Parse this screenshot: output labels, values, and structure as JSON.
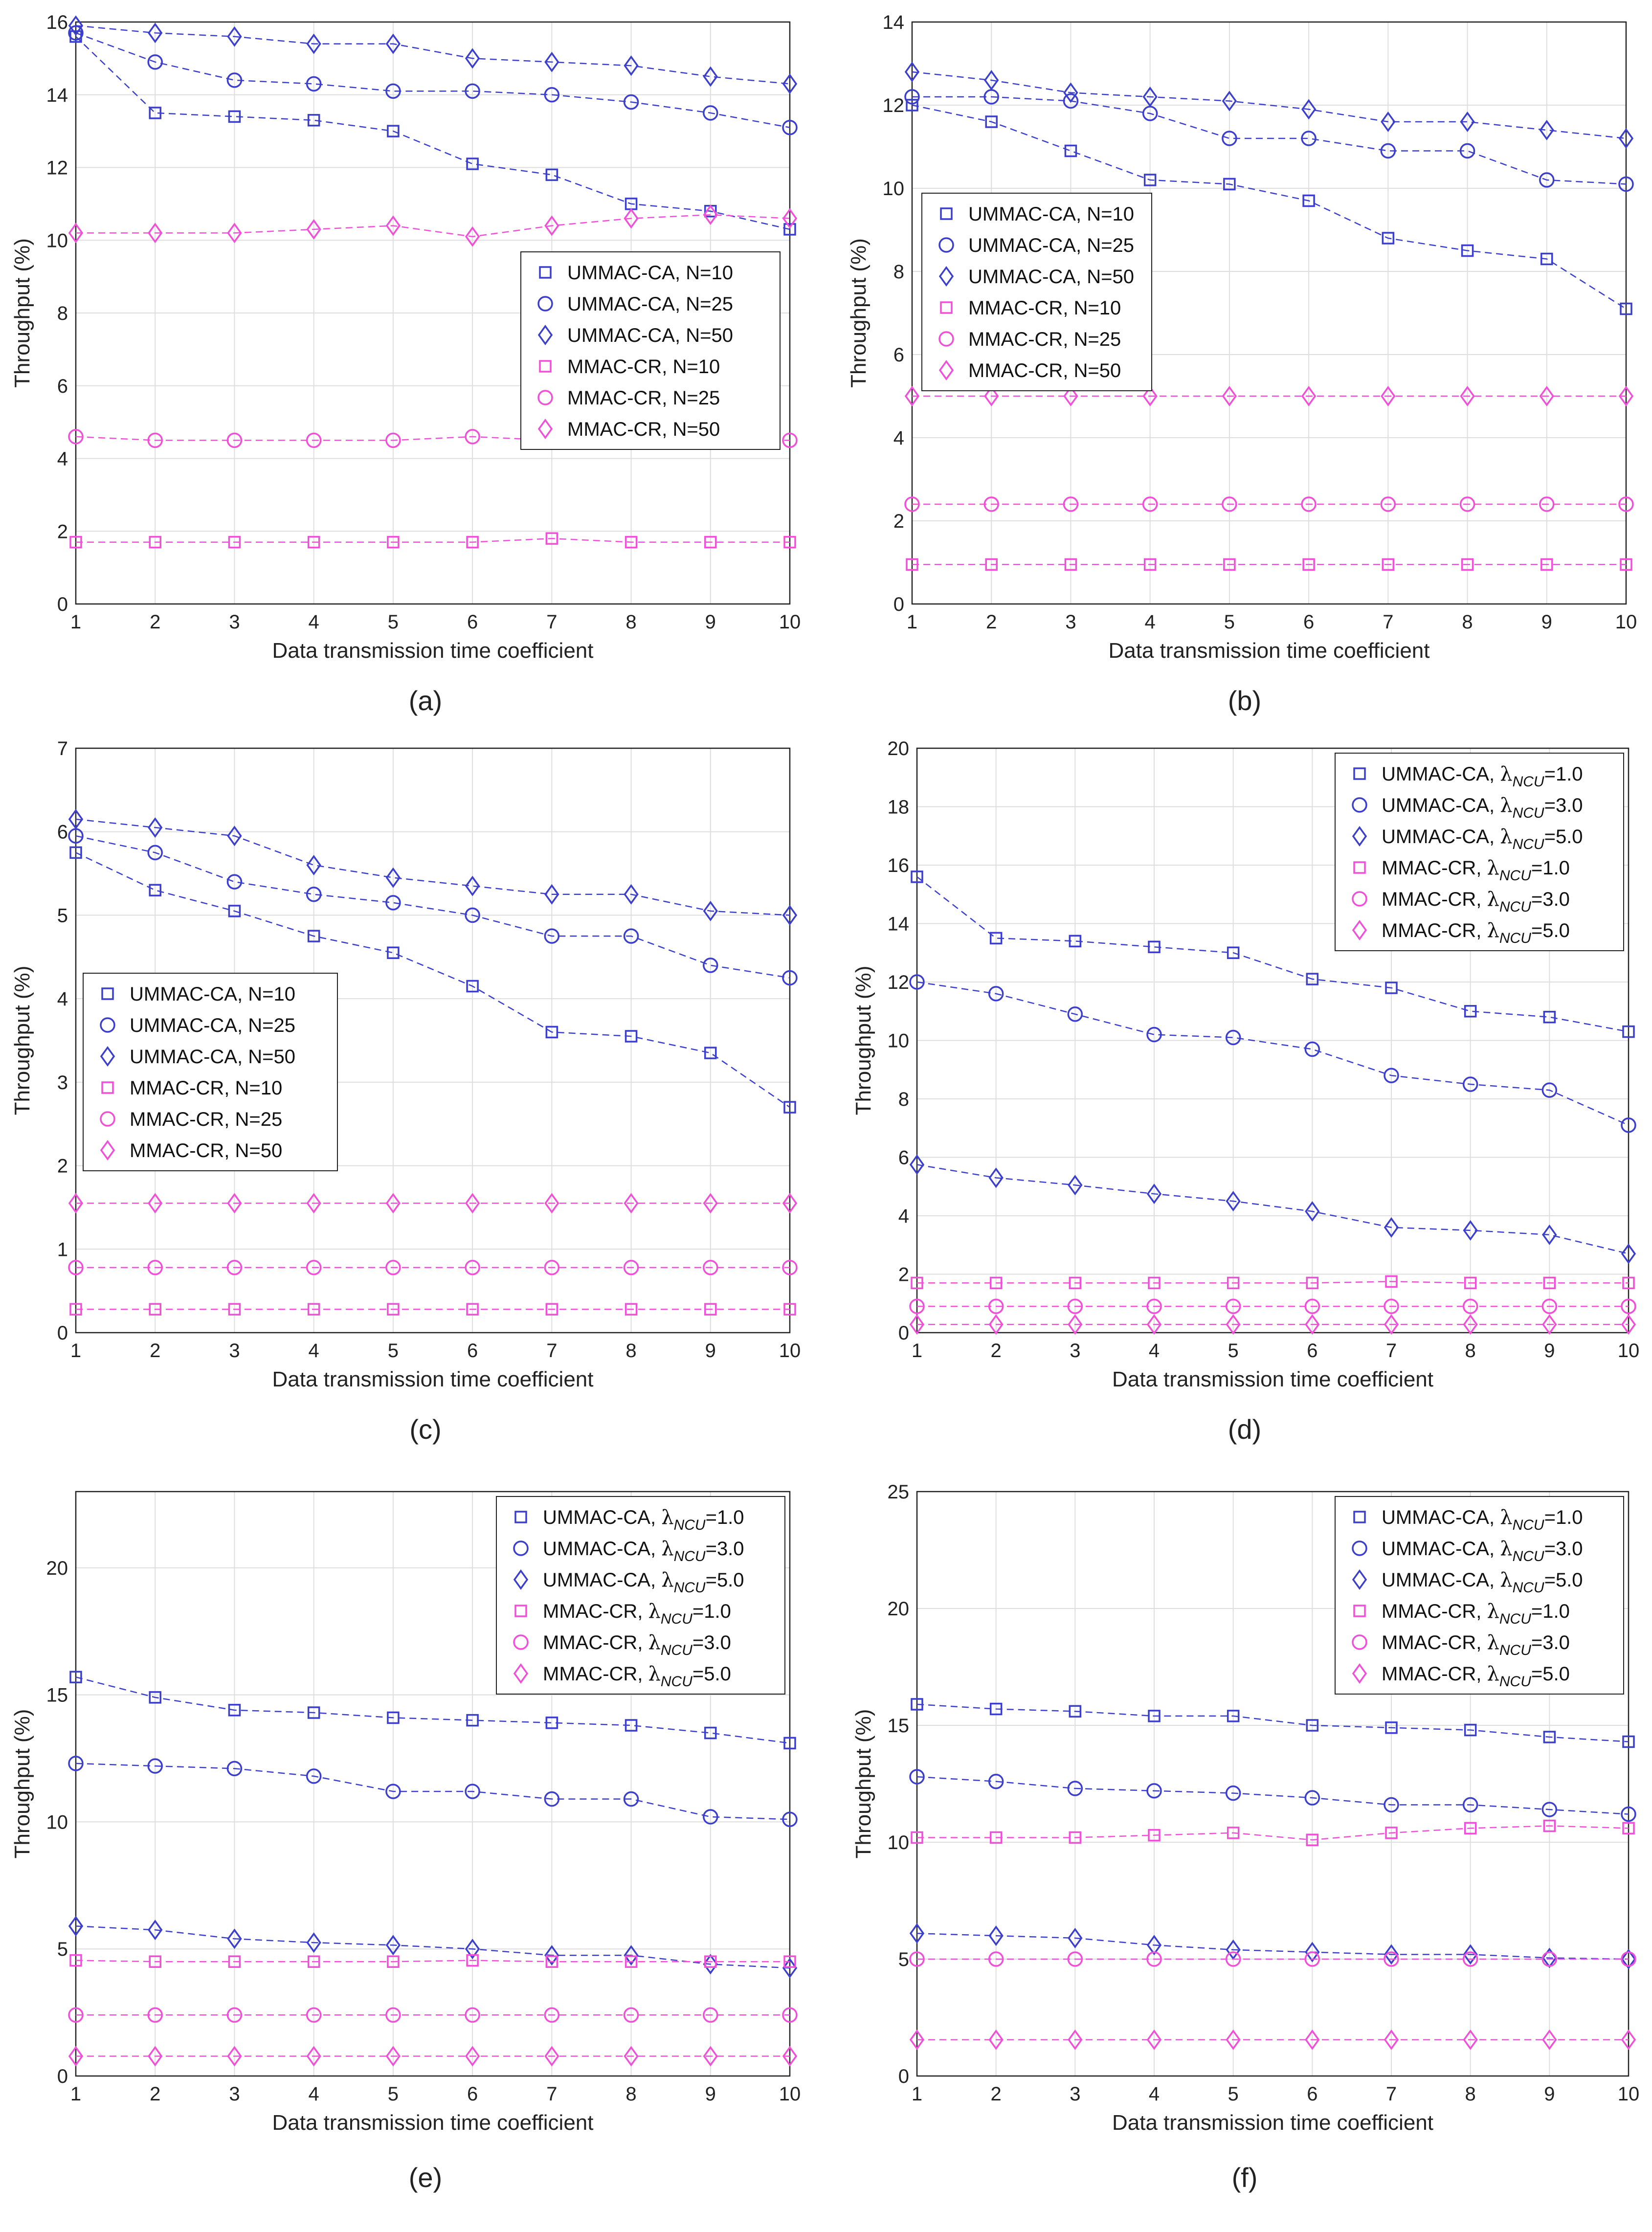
{
  "common": {
    "xlabel": "Data transmission time coefficient",
    "ylabel": "Throughput (%)",
    "x_ticks": [
      1,
      2,
      3,
      4,
      5,
      6,
      7,
      8,
      9,
      10
    ],
    "colors": {
      "ummac": "#3b3fcc",
      "mmac": "#f050d8",
      "grid": "#dedede"
    }
  },
  "legend_sets": {
    "N": {
      "prefix_ummac": "UMMAC-CA, ",
      "prefix_mmac": "MMAC-CR, ",
      "values": [
        "N=10",
        "N=25",
        "N=50"
      ]
    },
    "lambda": {
      "prefix_ummac": "UMMAC-CA, ",
      "prefix_mmac": "MMAC-CR, ",
      "symbol": "λ",
      "subscript": "NCU",
      "values": [
        "=1.0",
        "=3.0",
        "=5.0"
      ]
    }
  },
  "chart_data": [
    {
      "caption": "(a)",
      "type": "line",
      "legend": "N",
      "legend_position": "center-right",
      "x": [
        1,
        2,
        3,
        4,
        5,
        6,
        7,
        8,
        9,
        10
      ],
      "ylim": [
        0,
        16
      ],
      "yticks": [
        0,
        2,
        4,
        6,
        8,
        10,
        12,
        14,
        16
      ],
      "series": [
        {
          "name": "UMMAC-CA, N=10",
          "marker": "square",
          "group": "ummac",
          "values": [
            15.6,
            13.5,
            13.4,
            13.3,
            13.0,
            12.1,
            11.8,
            11.0,
            10.8,
            10.3
          ]
        },
        {
          "name": "UMMAC-CA, N=25",
          "marker": "circle",
          "group": "ummac",
          "values": [
            15.7,
            14.9,
            14.4,
            14.3,
            14.1,
            14.1,
            14.0,
            13.8,
            13.5,
            13.1
          ]
        },
        {
          "name": "UMMAC-CA, N=50",
          "marker": "diamond",
          "group": "ummac",
          "values": [
            15.9,
            15.7,
            15.6,
            15.4,
            15.4,
            15.0,
            14.9,
            14.8,
            14.5,
            14.3
          ]
        },
        {
          "name": "MMAC-CR, N=10",
          "marker": "square",
          "group": "mmac",
          "values": [
            1.7,
            1.7,
            1.7,
            1.7,
            1.7,
            1.7,
            1.8,
            1.7,
            1.7,
            1.7
          ]
        },
        {
          "name": "MMAC-CR, N=25",
          "marker": "circle",
          "group": "mmac",
          "values": [
            4.6,
            4.5,
            4.5,
            4.5,
            4.5,
            4.6,
            4.5,
            4.5,
            4.5,
            4.5
          ]
        },
        {
          "name": "MMAC-CR, N=50",
          "marker": "diamond",
          "group": "mmac",
          "values": [
            10.2,
            10.2,
            10.2,
            10.3,
            10.4,
            10.1,
            10.4,
            10.6,
            10.7,
            10.6
          ]
        }
      ]
    },
    {
      "caption": "(b)",
      "type": "line",
      "legend": "N",
      "legend_position": "center-left",
      "x": [
        1,
        2,
        3,
        4,
        5,
        6,
        7,
        8,
        9,
        10
      ],
      "ylim": [
        0,
        14
      ],
      "yticks": [
        0,
        2,
        4,
        6,
        8,
        10,
        12,
        14
      ],
      "series": [
        {
          "name": "UMMAC-CA, N=10",
          "marker": "square",
          "group": "ummac",
          "values": [
            12.0,
            11.6,
            10.9,
            10.2,
            10.1,
            9.7,
            8.8,
            8.5,
            8.3,
            7.1
          ]
        },
        {
          "name": "UMMAC-CA, N=25",
          "marker": "circle",
          "group": "ummac",
          "values": [
            12.2,
            12.2,
            12.1,
            11.8,
            11.2,
            11.2,
            10.9,
            10.9,
            10.2,
            10.1
          ]
        },
        {
          "name": "UMMAC-CA, N=50",
          "marker": "diamond",
          "group": "ummac",
          "values": [
            12.8,
            12.6,
            12.3,
            12.2,
            12.1,
            11.9,
            11.6,
            11.6,
            11.4,
            11.2
          ]
        },
        {
          "name": "MMAC-CR, N=10",
          "marker": "square",
          "group": "mmac",
          "values": [
            0.95,
            0.95,
            0.95,
            0.95,
            0.95,
            0.95,
            0.95,
            0.95,
            0.95,
            0.95
          ]
        },
        {
          "name": "MMAC-CR, N=25",
          "marker": "circle",
          "group": "mmac",
          "values": [
            2.4,
            2.4,
            2.4,
            2.4,
            2.4,
            2.4,
            2.4,
            2.4,
            2.4,
            2.4
          ]
        },
        {
          "name": "MMAC-CR, N=50",
          "marker": "diamond",
          "group": "mmac",
          "values": [
            5.0,
            5.0,
            5.0,
            5.0,
            5.0,
            5.0,
            5.0,
            5.0,
            5.0,
            5.0
          ]
        }
      ]
    },
    {
      "caption": "(c)",
      "type": "line",
      "legend": "N",
      "legend_position": "center-left",
      "x": [
        1,
        2,
        3,
        4,
        5,
        6,
        7,
        8,
        9,
        10
      ],
      "ylim": [
        0,
        7
      ],
      "yticks": [
        0,
        1,
        2,
        3,
        4,
        5,
        6,
        7
      ],
      "series": [
        {
          "name": "UMMAC-CA, N=10",
          "marker": "square",
          "group": "ummac",
          "values": [
            5.75,
            5.3,
            5.05,
            4.75,
            4.55,
            4.15,
            3.6,
            3.55,
            3.35,
            2.7
          ]
        },
        {
          "name": "UMMAC-CA, N=25",
          "marker": "circle",
          "group": "ummac",
          "values": [
            5.95,
            5.75,
            5.4,
            5.25,
            5.15,
            5.0,
            4.75,
            4.75,
            4.4,
            4.25
          ]
        },
        {
          "name": "UMMAC-CA, N=50",
          "marker": "diamond",
          "group": "ummac",
          "values": [
            6.15,
            6.05,
            5.95,
            5.6,
            5.45,
            5.35,
            5.25,
            5.25,
            5.05,
            5.0
          ]
        },
        {
          "name": "MMAC-CR, N=10",
          "marker": "square",
          "group": "mmac",
          "values": [
            0.28,
            0.28,
            0.28,
            0.28,
            0.28,
            0.28,
            0.28,
            0.28,
            0.28,
            0.28
          ]
        },
        {
          "name": "MMAC-CR, N=25",
          "marker": "circle",
          "group": "mmac",
          "values": [
            0.78,
            0.78,
            0.78,
            0.78,
            0.78,
            0.78,
            0.78,
            0.78,
            0.78,
            0.78
          ]
        },
        {
          "name": "MMAC-CR, N=50",
          "marker": "diamond",
          "group": "mmac",
          "values": [
            1.55,
            1.55,
            1.55,
            1.55,
            1.55,
            1.55,
            1.55,
            1.55,
            1.55,
            1.55
          ]
        }
      ]
    },
    {
      "caption": "(d)",
      "type": "line",
      "legend": "lambda",
      "legend_position": "top-right",
      "x": [
        1,
        2,
        3,
        4,
        5,
        6,
        7,
        8,
        9,
        10
      ],
      "ylim": [
        0,
        20
      ],
      "yticks": [
        0,
        2,
        4,
        6,
        8,
        10,
        12,
        14,
        16,
        18,
        20
      ],
      "series": [
        {
          "name": "UMMAC-CA, λNCU=1.0",
          "marker": "square",
          "group": "ummac",
          "values": [
            15.6,
            13.5,
            13.4,
            13.2,
            13.0,
            12.1,
            11.8,
            11.0,
            10.8,
            10.3
          ]
        },
        {
          "name": "UMMAC-CA, λNCU=3.0",
          "marker": "circle",
          "group": "ummac",
          "values": [
            12.0,
            11.6,
            10.9,
            10.2,
            10.1,
            9.7,
            8.8,
            8.5,
            8.3,
            7.1
          ]
        },
        {
          "name": "UMMAC-CA, λNCU=5.0",
          "marker": "diamond",
          "group": "ummac",
          "values": [
            5.75,
            5.3,
            5.05,
            4.75,
            4.5,
            4.15,
            3.6,
            3.5,
            3.35,
            2.7
          ]
        },
        {
          "name": "MMAC-CR, λNCU=1.0",
          "marker": "square",
          "group": "mmac",
          "values": [
            1.7,
            1.7,
            1.7,
            1.7,
            1.7,
            1.7,
            1.75,
            1.7,
            1.7,
            1.7
          ]
        },
        {
          "name": "MMAC-CR, λNCU=3.0",
          "marker": "circle",
          "group": "mmac",
          "values": [
            0.9,
            0.9,
            0.9,
            0.9,
            0.9,
            0.9,
            0.9,
            0.9,
            0.9,
            0.9
          ]
        },
        {
          "name": "MMAC-CR, λNCU=5.0",
          "marker": "diamond",
          "group": "mmac",
          "values": [
            0.28,
            0.28,
            0.28,
            0.28,
            0.28,
            0.28,
            0.28,
            0.28,
            0.28,
            0.28
          ]
        }
      ]
    },
    {
      "caption": "(e)",
      "type": "line",
      "legend": "lambda",
      "legend_position": "top-right",
      "x": [
        1,
        2,
        3,
        4,
        5,
        6,
        7,
        8,
        9,
        10
      ],
      "ylim": [
        0,
        23
      ],
      "yticks": [
        0,
        5,
        10,
        15,
        20
      ],
      "series": [
        {
          "name": "UMMAC-CA, λNCU=1.0",
          "marker": "square",
          "group": "ummac",
          "values": [
            15.7,
            14.9,
            14.4,
            14.3,
            14.1,
            14.0,
            13.9,
            13.8,
            13.5,
            13.1
          ]
        },
        {
          "name": "UMMAC-CA, λNCU=3.0",
          "marker": "circle",
          "group": "ummac",
          "values": [
            12.3,
            12.2,
            12.1,
            11.8,
            11.2,
            11.2,
            10.9,
            10.9,
            10.2,
            10.1
          ]
        },
        {
          "name": "UMMAC-CA, λNCU=5.0",
          "marker": "diamond",
          "group": "ummac",
          "values": [
            5.9,
            5.75,
            5.4,
            5.25,
            5.15,
            5.0,
            4.75,
            4.75,
            4.4,
            4.25
          ]
        },
        {
          "name": "MMAC-CR, λNCU=1.0",
          "marker": "square",
          "group": "mmac",
          "values": [
            4.55,
            4.5,
            4.5,
            4.5,
            4.5,
            4.55,
            4.5,
            4.5,
            4.5,
            4.5
          ]
        },
        {
          "name": "MMAC-CR, λNCU=3.0",
          "marker": "circle",
          "group": "mmac",
          "values": [
            2.4,
            2.4,
            2.4,
            2.4,
            2.4,
            2.4,
            2.4,
            2.4,
            2.4,
            2.4
          ]
        },
        {
          "name": "MMAC-CR, λNCU=5.0",
          "marker": "diamond",
          "group": "mmac",
          "values": [
            0.78,
            0.78,
            0.78,
            0.78,
            0.78,
            0.78,
            0.78,
            0.78,
            0.78,
            0.78
          ]
        }
      ]
    },
    {
      "caption": "(f)",
      "type": "line",
      "legend": "lambda",
      "legend_position": "top-right",
      "x": [
        1,
        2,
        3,
        4,
        5,
        6,
        7,
        8,
        9,
        10
      ],
      "ylim": [
        0,
        25
      ],
      "yticks": [
        0,
        5,
        10,
        15,
        20,
        25
      ],
      "series": [
        {
          "name": "UMMAC-CA, λNCU=1.0",
          "marker": "square",
          "group": "ummac",
          "values": [
            15.9,
            15.7,
            15.6,
            15.4,
            15.4,
            15.0,
            14.9,
            14.8,
            14.5,
            14.3
          ]
        },
        {
          "name": "UMMAC-CA, λNCU=3.0",
          "marker": "circle",
          "group": "ummac",
          "values": [
            12.8,
            12.6,
            12.3,
            12.2,
            12.1,
            11.9,
            11.6,
            11.6,
            11.4,
            11.2
          ]
        },
        {
          "name": "UMMAC-CA, λNCU=5.0",
          "marker": "diamond",
          "group": "ummac",
          "values": [
            6.1,
            6.0,
            5.9,
            5.6,
            5.4,
            5.3,
            5.2,
            5.2,
            5.05,
            5.0
          ]
        },
        {
          "name": "MMAC-CR, λNCU=1.0",
          "marker": "square",
          "group": "mmac",
          "values": [
            10.2,
            10.2,
            10.2,
            10.3,
            10.4,
            10.1,
            10.4,
            10.6,
            10.7,
            10.6
          ]
        },
        {
          "name": "MMAC-CR, λNCU=3.0",
          "marker": "circle",
          "group": "mmac",
          "values": [
            5.0,
            5.0,
            5.0,
            5.0,
            5.0,
            5.0,
            5.0,
            5.0,
            5.0,
            5.0
          ]
        },
        {
          "name": "MMAC-CR, λNCU=5.0",
          "marker": "diamond",
          "group": "mmac",
          "values": [
            1.55,
            1.55,
            1.55,
            1.55,
            1.55,
            1.55,
            1.55,
            1.55,
            1.55,
            1.55
          ]
        }
      ]
    }
  ]
}
